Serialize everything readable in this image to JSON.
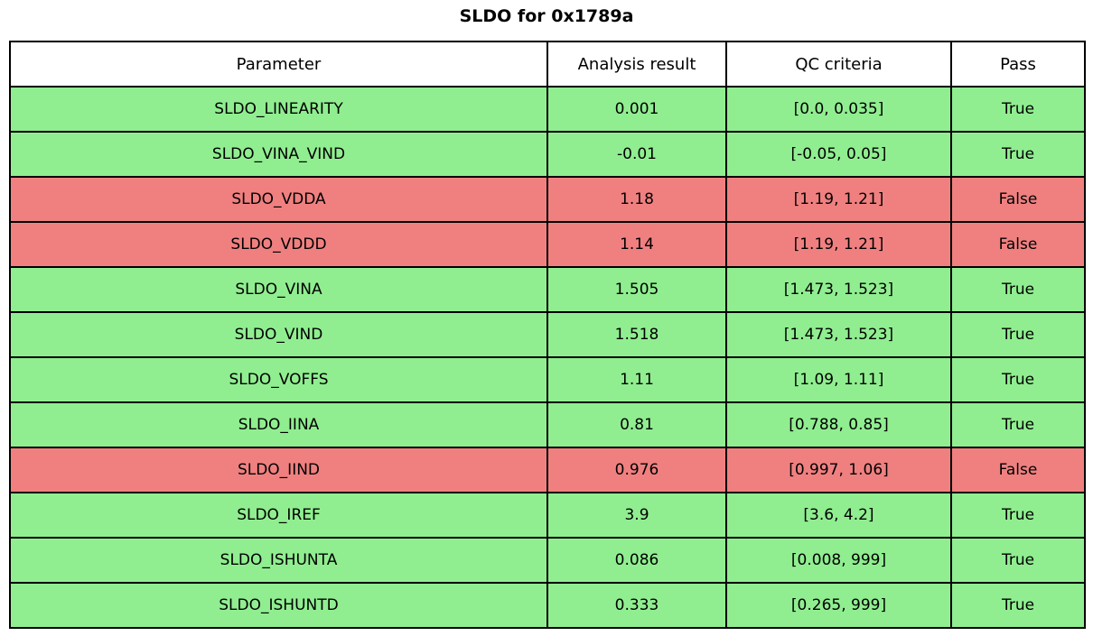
{
  "title": "SLDO for 0x1789a",
  "colors": {
    "pass_row": "#90EE90",
    "fail_row": "#F08080",
    "header_bg": "#FFFFFF",
    "border": "#000000",
    "text": "#000000"
  },
  "chart_data": {
    "type": "table",
    "title": "SLDO for 0x1789a",
    "headers": [
      "Parameter",
      "Analysis result",
      "QC criteria",
      "Pass"
    ],
    "rows": [
      {
        "parameter": "SLDO_LINEARITY",
        "result": "0.001",
        "criteria": "[0.0, 0.035]",
        "pass": "True"
      },
      {
        "parameter": "SLDO_VINA_VIND",
        "result": "-0.01",
        "criteria": "[-0.05, 0.05]",
        "pass": "True"
      },
      {
        "parameter": "SLDO_VDDA",
        "result": "1.18",
        "criteria": "[1.19, 1.21]",
        "pass": "False"
      },
      {
        "parameter": "SLDO_VDDD",
        "result": "1.14",
        "criteria": "[1.19, 1.21]",
        "pass": "False"
      },
      {
        "parameter": "SLDO_VINA",
        "result": "1.505",
        "criteria": "[1.473, 1.523]",
        "pass": "True"
      },
      {
        "parameter": "SLDO_VIND",
        "result": "1.518",
        "criteria": "[1.473, 1.523]",
        "pass": "True"
      },
      {
        "parameter": "SLDO_VOFFS",
        "result": "1.11",
        "criteria": "[1.09, 1.11]",
        "pass": "True"
      },
      {
        "parameter": "SLDO_IINA",
        "result": "0.81",
        "criteria": "[0.788, 0.85]",
        "pass": "True"
      },
      {
        "parameter": "SLDO_IIND",
        "result": "0.976",
        "criteria": "[0.997, 1.06]",
        "pass": "False"
      },
      {
        "parameter": "SLDO_IREF",
        "result": "3.9",
        "criteria": "[3.6, 4.2]",
        "pass": "True"
      },
      {
        "parameter": "SLDO_ISHUNTA",
        "result": "0.086",
        "criteria": "[0.008, 999]",
        "pass": "True"
      },
      {
        "parameter": "SLDO_ISHUNTD",
        "result": "0.333",
        "criteria": "[0.265, 999]",
        "pass": "True"
      }
    ]
  }
}
